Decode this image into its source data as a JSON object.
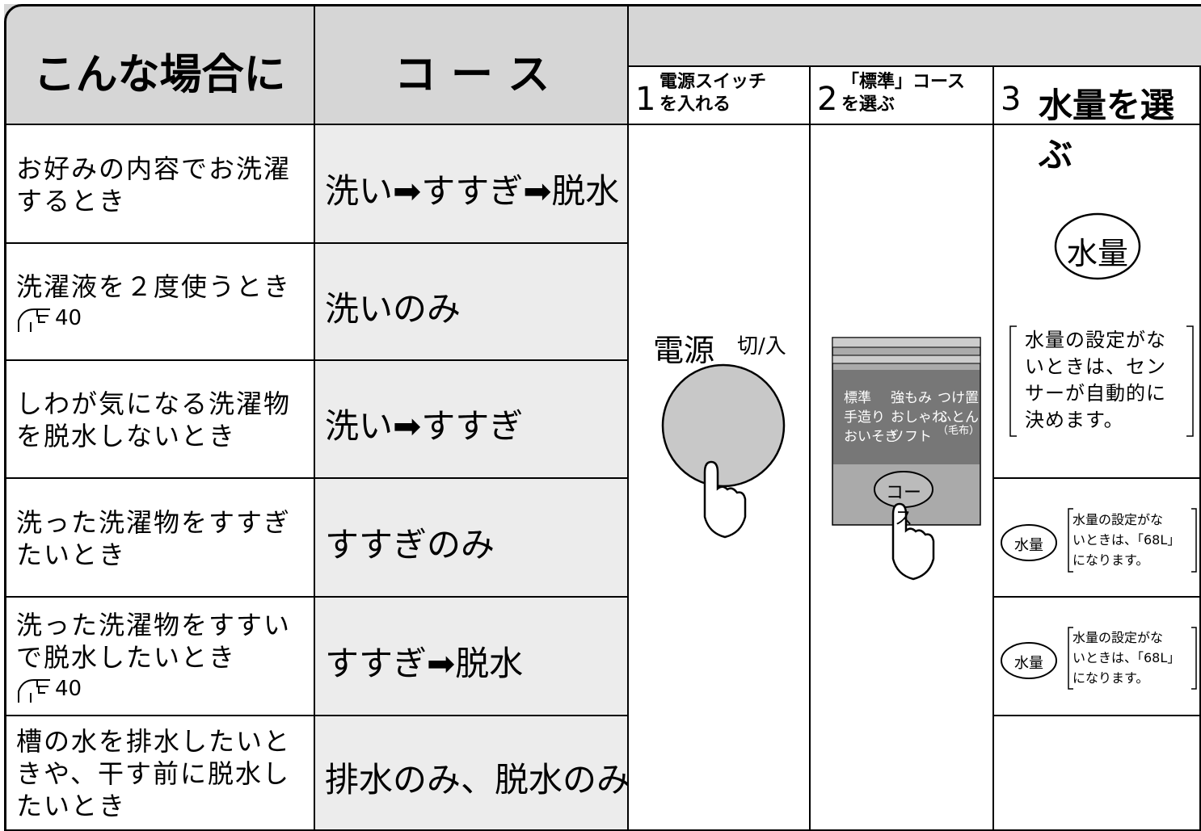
{
  "header": {
    "case_heading": "こんな場合に",
    "course_heading": "コ ー ス",
    "steps": [
      {
        "number": "1",
        "lines": [
          "電源スイッチ",
          "を入れる"
        ]
      },
      {
        "number": "2",
        "lines": [
          "「標準」コース",
          "を選ぶ"
        ]
      },
      {
        "number": "3",
        "label": "水量を選ぶ"
      }
    ]
  },
  "rows": [
    {
      "case": [
        "お好みの内容でお洗濯",
        "するとき"
      ],
      "course": "洗い➡すすぎ➡脱水"
    },
    {
      "case": [
        "洗濯液を２度使うとき"
      ],
      "ref": "40",
      "course": "洗いのみ"
    },
    {
      "case": [
        "しわが気になる洗濯物",
        "を脱水しないとき"
      ],
      "course": "洗い➡すすぎ"
    },
    {
      "case": [
        "洗った洗濯物をすすぎ",
        "たいとき"
      ],
      "course": "すすぎのみ"
    },
    {
      "case": [
        "洗った洗濯物をすすい",
        "で脱水したいとき"
      ],
      "ref": "40",
      "course": "すすぎ➡脱水"
    },
    {
      "case": [
        "槽の水を排水したいと",
        "きや、干す前に脱水し",
        "たいとき"
      ],
      "course": "排水のみ、脱水のみ"
    }
  ],
  "step1": {
    "label": "電源",
    "switch_label": "切/入"
  },
  "step2": {
    "courses": [
      [
        "標準",
        "強もみ",
        "つけ置"
      ],
      [
        "手造り",
        "おしゃれ",
        "ふとん"
      ],
      [
        "おいそぎ",
        "ソフト",
        "（毛布）"
      ]
    ],
    "button": "コース"
  },
  "step3": {
    "button": "水量",
    "note": [
      "水量の設定がな",
      "いときは、セン",
      "サーが自動的に",
      "決めます。"
    ],
    "row4": {
      "button": "水量",
      "note": [
        "水量の設定がな",
        "いときは、「68L」",
        "になります。"
      ]
    },
    "row5": {
      "button": "水量",
      "note": [
        "水量の設定がな",
        "いときは、「68L」",
        "になります。"
      ]
    }
  }
}
